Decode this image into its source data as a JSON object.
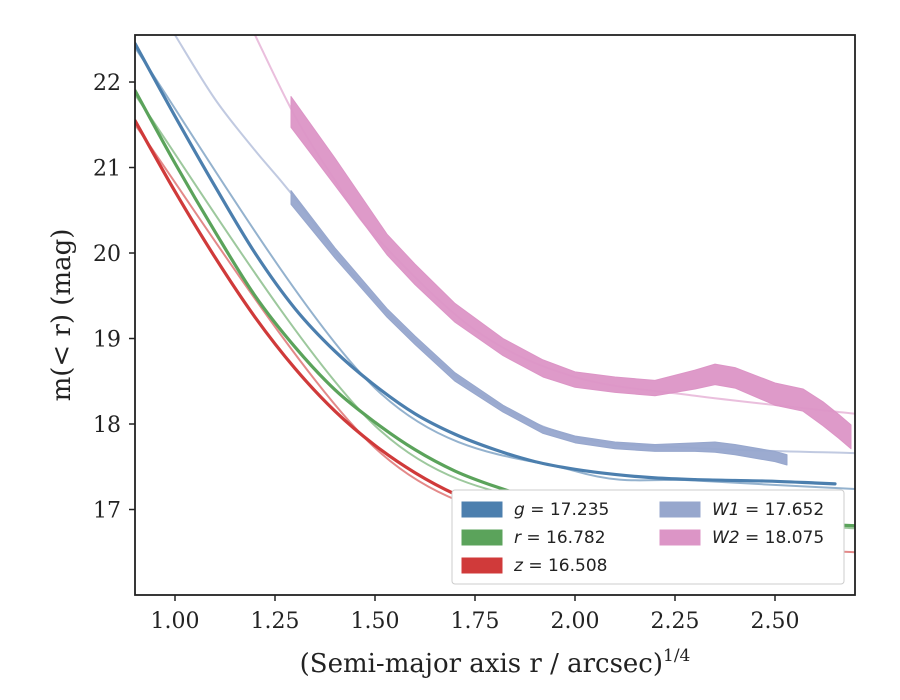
{
  "chart_data": {
    "type": "line",
    "xlabel": "(Semi-major axis r / arcsec)",
    "xlabel_sup": "1/4",
    "ylabel": "m(< r) (mag)",
    "xlim": [
      0.9,
      2.7
    ],
    "ylim": [
      22.55,
      16.0
    ],
    "y_inverted": true,
    "x_ticks": [
      1.0,
      1.25,
      1.5,
      1.75,
      2.0,
      2.25,
      2.5
    ],
    "x_tick_labels": [
      "1.00",
      "1.25",
      "1.50",
      "1.75",
      "2.00",
      "2.25",
      "2.50"
    ],
    "y_ticks": [
      17,
      18,
      19,
      20,
      21,
      22
    ],
    "y_tick_labels": [
      "17",
      "18",
      "19",
      "20",
      "21",
      "22"
    ],
    "grid": false,
    "legend_position": "lower-right",
    "series": [
      {
        "name": "g = 17.235",
        "band": "g",
        "value": "17.235",
        "color": "#4c7fae",
        "x": [
          0.9,
          1.0,
          1.1,
          1.2,
          1.3,
          1.4,
          1.5,
          1.6,
          1.7,
          1.8,
          1.9,
          2.0,
          2.1,
          2.2,
          2.3,
          2.4,
          2.5,
          2.6,
          2.65
        ],
        "y": [
          22.45,
          21.6,
          20.78,
          20.0,
          19.35,
          18.85,
          18.45,
          18.12,
          17.88,
          17.7,
          17.56,
          17.47,
          17.41,
          17.37,
          17.35,
          17.34,
          17.33,
          17.31,
          17.3
        ],
        "model_x": [
          0.9,
          1.5,
          2.0,
          2.3,
          2.7
        ],
        "model_y": [
          22.4,
          18.42,
          17.45,
          17.34,
          17.24
        ]
      },
      {
        "name": "r = 16.782",
        "band": "r",
        "value": "16.782",
        "color": "#5ba35b",
        "x": [
          0.9,
          1.0,
          1.1,
          1.2,
          1.3,
          1.4,
          1.5,
          1.6,
          1.7,
          1.8,
          1.9,
          2.0,
          2.1,
          2.2,
          2.3,
          2.4,
          2.5,
          2.6,
          2.7
        ],
        "y": [
          21.9,
          21.05,
          20.25,
          19.5,
          18.9,
          18.4,
          18.02,
          17.7,
          17.45,
          17.27,
          17.13,
          17.03,
          16.96,
          16.92,
          16.89,
          16.87,
          16.85,
          16.83,
          16.81
        ],
        "model_x": [
          0.9,
          1.5,
          2.0,
          2.3,
          2.7
        ],
        "model_y": [
          21.85,
          17.98,
          17.0,
          16.88,
          16.78
        ]
      },
      {
        "name": "z = 16.508",
        "band": "z",
        "value": "16.508",
        "color": "#d03a3a",
        "x": [
          0.9,
          1.0,
          1.1,
          1.2,
          1.3,
          1.4,
          1.5,
          1.6,
          1.7,
          1.8,
          1.9,
          2.0,
          2.1,
          2.2,
          2.3,
          2.4,
          2.5,
          2.6
        ],
        "y": [
          21.55,
          20.72,
          19.95,
          19.25,
          18.65,
          18.15,
          17.75,
          17.43,
          17.18,
          17.0,
          16.86,
          16.76,
          16.69,
          16.64,
          16.61,
          16.59,
          16.57,
          16.55
        ],
        "model_x": [
          0.9,
          1.5,
          2.0,
          2.3,
          2.7
        ],
        "model_y": [
          21.5,
          17.72,
          16.74,
          16.6,
          16.5
        ]
      },
      {
        "name": "W1 = 17.652",
        "band": "W1",
        "value": "17.652",
        "color": "#97a7cd",
        "x": [
          1.29,
          1.4,
          1.53,
          1.6,
          1.7,
          1.82,
          1.92,
          2.0,
          2.1,
          2.2,
          2.3,
          2.35,
          2.4,
          2.5,
          2.53
        ],
        "y": [
          20.65,
          20.0,
          19.3,
          18.98,
          18.55,
          18.18,
          17.93,
          17.82,
          17.75,
          17.72,
          17.73,
          17.73,
          17.7,
          17.62,
          17.58
        ],
        "band_width": [
          0.08,
          0.06,
          0.05,
          0.05,
          0.05,
          0.04,
          0.04,
          0.04,
          0.04,
          0.04,
          0.05,
          0.06,
          0.06,
          0.06,
          0.06
        ],
        "model_x": [
          1.0,
          1.1,
          1.2,
          1.29,
          1.5,
          1.75,
          2.0,
          2.3,
          2.7
        ],
        "model_y": [
          22.55,
          21.8,
          21.2,
          20.7,
          19.45,
          18.4,
          17.85,
          17.72,
          17.66
        ]
      },
      {
        "name": "W2 = 18.075",
        "band": "W2",
        "value": "18.075",
        "color": "#dc95c6",
        "x": [
          1.29,
          1.4,
          1.53,
          1.6,
          1.7,
          1.82,
          1.92,
          2.0,
          2.1,
          2.2,
          2.3,
          2.35,
          2.4,
          2.5,
          2.57,
          2.62,
          2.66,
          2.69
        ],
        "y": [
          21.65,
          20.95,
          20.1,
          19.75,
          19.3,
          18.9,
          18.65,
          18.52,
          18.46,
          18.42,
          18.52,
          18.58,
          18.54,
          18.35,
          18.28,
          18.12,
          17.97,
          17.85
        ],
        "band_width": [
          0.18,
          0.16,
          0.12,
          0.12,
          0.11,
          0.1,
          0.1,
          0.09,
          0.09,
          0.09,
          0.11,
          0.12,
          0.12,
          0.13,
          0.13,
          0.14,
          0.14,
          0.14
        ],
        "model_x": [
          1.2,
          1.3,
          1.4,
          1.5,
          1.75,
          2.0,
          2.3,
          2.7
        ],
        "model_y": [
          22.55,
          21.6,
          20.85,
          20.2,
          19.1,
          18.55,
          18.33,
          18.12
        ]
      }
    ]
  }
}
